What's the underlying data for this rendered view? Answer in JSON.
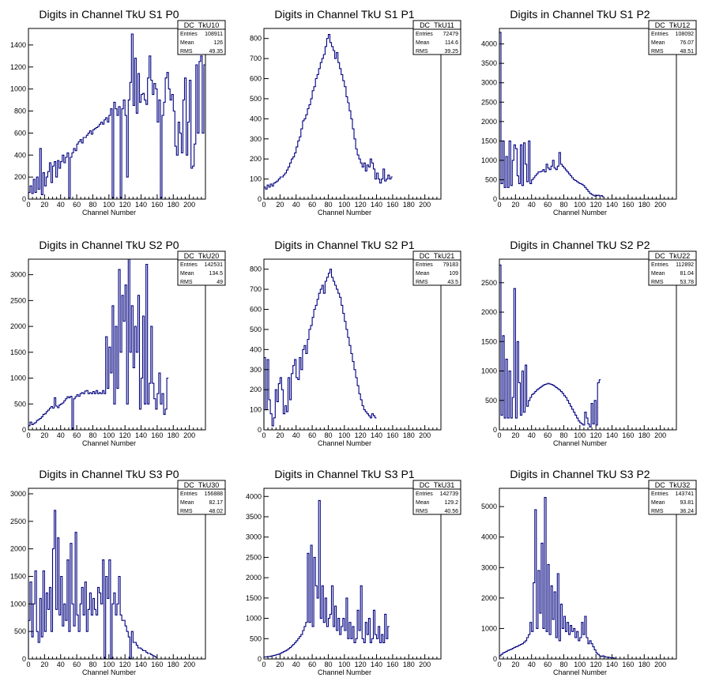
{
  "line_color": "#000080",
  "chart_data": [
    {
      "type": "histogram",
      "title": "Digits in Channel TkU S1 P0",
      "xlabel": "Channel Number",
      "ylabel": "",
      "xlim": [
        0,
        220
      ],
      "ylim": [
        0,
        1550
      ],
      "xticks": [
        0,
        20,
        40,
        60,
        80,
        100,
        120,
        140,
        160,
        180,
        200
      ],
      "yticks": [
        200,
        400,
        600,
        800,
        1000,
        1200,
        1400
      ],
      "stats": {
        "name": "DC_TkU10",
        "entries": "108911",
        "mean": "126",
        "rms": "49.35"
      },
      "bin_width": 2,
      "x_start": 0,
      "values": [
        60,
        120,
        50,
        180,
        60,
        200,
        90,
        460,
        40,
        240,
        120,
        200,
        250,
        330,
        150,
        300,
        340,
        200,
        350,
        280,
        340,
        400,
        330,
        380,
        420,
        10,
        380,
        420,
        460,
        440,
        500,
        520,
        540,
        510,
        560,
        560,
        580,
        600,
        620,
        590,
        630,
        640,
        650,
        660,
        680,
        700,
        680,
        720,
        740,
        700,
        760,
        820,
        10,
        880,
        820,
        760,
        840,
        10,
        820,
        900,
        760,
        200,
        900,
        1060,
        1500,
        850,
        1280,
        780,
        1140,
        880,
        950,
        960,
        900,
        860,
        1100,
        1300,
        1080,
        950,
        1050,
        1000,
        700,
        900,
        10,
        760,
        880,
        1100,
        1150,
        1000,
        900,
        950,
        800,
        480,
        400,
        700,
        600,
        420,
        900,
        1100,
        400,
        700,
        1080,
        280,
        300,
        500,
        1220,
        600,
        1250,
        1300,
        600,
        1220
      ]
    },
    {
      "type": "histogram",
      "title": "Digits in Channel TkU S1 P1",
      "xlabel": "Channel Number",
      "ylabel": "",
      "xlim": [
        0,
        220
      ],
      "ylim": [
        0,
        850
      ],
      "xticks": [
        0,
        20,
        40,
        60,
        80,
        100,
        120,
        140,
        160,
        180,
        200
      ],
      "yticks": [
        100,
        200,
        300,
        400,
        500,
        600,
        700,
        800
      ],
      "stats": {
        "name": "DC_TkU11",
        "entries": "72479",
        "mean": "114.6",
        "rms": "39.25"
      },
      "bin_width": 2,
      "x_start": 0,
      "values": [
        60,
        50,
        70,
        60,
        75,
        65,
        80,
        85,
        90,
        100,
        110,
        110,
        120,
        130,
        145,
        160,
        180,
        200,
        210,
        230,
        260,
        290,
        310,
        350,
        390,
        400,
        420,
        450,
        470,
        500,
        540,
        560,
        600,
        620,
        650,
        680,
        700,
        720,
        760,
        800,
        820,
        780,
        760,
        740,
        700,
        730,
        680,
        650,
        620,
        590,
        560,
        510,
        480,
        440,
        400,
        350,
        300,
        250,
        220,
        200,
        180,
        160,
        180,
        140,
        170,
        160,
        200,
        180,
        150,
        100,
        130,
        100,
        80,
        100,
        150,
        90,
        100,
        120,
        100,
        110
      ]
    },
    {
      "type": "histogram",
      "title": "Digits in Channel TkU S1 P2",
      "xlabel": "Channel Number",
      "ylabel": "",
      "xlim": [
        0,
        220
      ],
      "ylim": [
        0,
        4400
      ],
      "xticks": [
        0,
        20,
        40,
        60,
        80,
        100,
        120,
        140,
        160,
        180,
        200
      ],
      "yticks": [
        500,
        1000,
        1500,
        2000,
        2500,
        3000,
        3500,
        4000
      ],
      "stats": {
        "name": "DC_TkU12",
        "entries": "108092",
        "mean": "76.07",
        "rms": "48.51"
      },
      "bin_width": 2,
      "x_start": 0,
      "values": [
        4300,
        400,
        1500,
        300,
        1100,
        300,
        1500,
        350,
        1000,
        1400,
        1300,
        600,
        400,
        1400,
        350,
        1450,
        900,
        450,
        1500,
        400,
        500,
        550,
        600,
        650,
        700,
        700,
        720,
        760,
        700,
        900,
        800,
        760,
        850,
        1000,
        800,
        760,
        850,
        1200,
        900,
        850,
        800,
        750,
        700,
        650,
        600,
        550,
        500,
        480,
        450,
        420,
        400,
        380,
        350,
        300,
        250,
        200,
        150,
        120,
        100,
        80,
        90,
        100,
        80,
        90,
        60
      ]
    },
    {
      "type": "histogram",
      "title": "Digits in Channel TkU S2 P0",
      "xlabel": "Channel Number",
      "ylabel": "",
      "xlim": [
        0,
        220
      ],
      "ylim": [
        0,
        3300
      ],
      "xticks": [
        0,
        20,
        40,
        60,
        80,
        100,
        120,
        140,
        160,
        180,
        200
      ],
      "yticks": [
        500,
        1000,
        1500,
        2000,
        2500,
        3000
      ],
      "stats": {
        "name": "DC_TkU20",
        "entries": "142531",
        "mean": "134.5",
        "rms": "49"
      },
      "bin_width": 2,
      "x_start": 0,
      "values": [
        80,
        150,
        100,
        120,
        140,
        180,
        200,
        220,
        250,
        300,
        310,
        350,
        380,
        420,
        450,
        420,
        620,
        460,
        430,
        480,
        500,
        520,
        560,
        600,
        640,
        620,
        650,
        10,
        600,
        640,
        680,
        650,
        700,
        720,
        700,
        750,
        760,
        700,
        720,
        700,
        740,
        700,
        760,
        700,
        720,
        700,
        760,
        700,
        1800,
        800,
        1600,
        1100,
        2400,
        500,
        2000,
        800,
        3100,
        1500,
        2600,
        2100,
        2800,
        500,
        3300,
        1500,
        2400,
        1200,
        2000,
        1500,
        2600,
        400,
        1000,
        2200,
        500,
        3200,
        500,
        900,
        2000,
        900,
        600,
        400,
        700,
        1100,
        500,
        700,
        300,
        400,
        1000
      ]
    },
    {
      "type": "histogram",
      "title": "Digits in Channel TkU S2 P1",
      "xlabel": "Channel Number",
      "ylabel": "",
      "xlim": [
        0,
        220
      ],
      "ylim": [
        0,
        850
      ],
      "xticks": [
        0,
        20,
        40,
        60,
        80,
        100,
        120,
        140,
        160,
        180,
        200
      ],
      "yticks": [
        100,
        200,
        300,
        400,
        500,
        600,
        700,
        800
      ],
      "stats": {
        "name": "DC_TkU21",
        "entries": "79183",
        "mean": "109",
        "rms": "43.5"
      },
      "bin_width": 2,
      "x_start": 0,
      "values": [
        360,
        100,
        350,
        150,
        80,
        20,
        60,
        200,
        140,
        230,
        260,
        200,
        80,
        120,
        90,
        260,
        150,
        280,
        320,
        350,
        260,
        250,
        360,
        300,
        400,
        420,
        380,
        450,
        500,
        520,
        560,
        600,
        620,
        650,
        680,
        700,
        720,
        680,
        740,
        760,
        780,
        800,
        760,
        740,
        720,
        700,
        680,
        660,
        620,
        580,
        540,
        500,
        460,
        420,
        380,
        340,
        300,
        260,
        220,
        180,
        150,
        120,
        100,
        90,
        80,
        70,
        60,
        80,
        70,
        60
      ]
    },
    {
      "type": "histogram",
      "title": "Digits in Channel TkU S2 P2",
      "xlabel": "Channel Number",
      "ylabel": "",
      "xlim": [
        0,
        220
      ],
      "ylim": [
        0,
        2900
      ],
      "xticks": [
        0,
        20,
        40,
        60,
        80,
        100,
        120,
        140,
        160,
        180,
        200
      ],
      "yticks": [
        500,
        1000,
        1500,
        2000,
        2500
      ],
      "stats": {
        "name": "DC_TkU22",
        "entries": "112892",
        "mean": "81.04",
        "rms": "53.78"
      },
      "bin_width": 2,
      "x_start": 0,
      "values": [
        2800,
        250,
        1600,
        200,
        1200,
        200,
        1000,
        200,
        550,
        2400,
        200,
        1500,
        800,
        250,
        1000,
        300,
        1100,
        400,
        500,
        550,
        600,
        620,
        650,
        680,
        700,
        720,
        740,
        760,
        770,
        780,
        790,
        780,
        770,
        760,
        740,
        720,
        700,
        680,
        650,
        620,
        580,
        550,
        500,
        450,
        400,
        350,
        300,
        250,
        200,
        150,
        120,
        100,
        80,
        300,
        200,
        100,
        50,
        450,
        100,
        500,
        80,
        800,
        850
      ]
    },
    {
      "type": "histogram",
      "title": "Digits in Channel TkU S3 P0",
      "xlabel": "Channel Number",
      "ylabel": "",
      "xlim": [
        0,
        220
      ],
      "ylim": [
        0,
        3100
      ],
      "xticks": [
        0,
        20,
        40,
        60,
        80,
        100,
        120,
        140,
        160,
        180,
        200
      ],
      "yticks": [
        500,
        1000,
        1500,
        2000,
        2500,
        3000
      ],
      "stats": {
        "name": "DC_TkU30",
        "entries": "156888",
        "mean": "82.17",
        "rms": "48.02"
      },
      "bin_width": 2,
      "x_start": 0,
      "values": [
        700,
        1400,
        400,
        1000,
        1600,
        500,
        300,
        1100,
        400,
        1600,
        500,
        1200,
        900,
        1300,
        500,
        2000,
        2700,
        900,
        2200,
        800,
        1500,
        600,
        1000,
        700,
        1800,
        500,
        2100,
        1000,
        600,
        2300,
        800,
        500,
        1000,
        1300,
        800,
        1400,
        500,
        900,
        1200,
        800,
        1100,
        900,
        800,
        1300,
        1200,
        1000,
        1800,
        10,
        1500,
        1100,
        1800,
        10,
        1000,
        1200,
        800,
        1000,
        1500,
        800,
        700,
        700,
        600,
        500,
        400,
        10,
        500,
        300,
        300,
        250,
        200,
        200,
        180,
        150,
        150,
        120,
        100,
        100,
        80,
        60,
        50,
        30
      ]
    },
    {
      "type": "histogram",
      "title": "Digits in Channel TkU S3 P1",
      "xlabel": "Channel Number",
      "ylabel": "",
      "xlim": [
        0,
        220
      ],
      "ylim": [
        0,
        4200
      ],
      "xticks": [
        0,
        20,
        40,
        60,
        80,
        100,
        120,
        140,
        160,
        180,
        200
      ],
      "yticks": [
        500,
        1000,
        1500,
        2000,
        2500,
        3000,
        3500,
        4000
      ],
      "stats": {
        "name": "DC_TkU31",
        "entries": "142739",
        "mean": "129.2",
        "rms": "40.56"
      },
      "bin_width": 2,
      "x_start": 0,
      "values": [
        50,
        50,
        60,
        60,
        70,
        80,
        90,
        100,
        110,
        120,
        140,
        160,
        180,
        200,
        220,
        250,
        280,
        320,
        360,
        400,
        450,
        500,
        550,
        600,
        700,
        800,
        900,
        2600,
        900,
        2800,
        800,
        2500,
        1800,
        1500,
        3900,
        1000,
        1800,
        900,
        1500,
        800,
        1000,
        1100,
        1800,
        800,
        1300,
        700,
        1000,
        600,
        800,
        1000,
        700,
        1500,
        500,
        900,
        500,
        800,
        400,
        500,
        1200,
        700,
        1800,
        500,
        400,
        900,
        600,
        1000,
        400,
        500,
        1200,
        600,
        500,
        800,
        400,
        600,
        400,
        1100,
        500,
        800
      ]
    },
    {
      "type": "histogram",
      "title": "Digits in Channel TkU S3 P2",
      "xlabel": "Channel Number",
      "ylabel": "",
      "xlim": [
        0,
        220
      ],
      "ylim": [
        0,
        5600
      ],
      "xticks": [
        0,
        20,
        40,
        60,
        80,
        100,
        120,
        140,
        160,
        180,
        200
      ],
      "yticks": [
        1000,
        2000,
        3000,
        4000,
        5000
      ],
      "stats": {
        "name": "DC_TkU32",
        "entries": "143741",
        "mean": "93.81",
        "rms": "36.24"
      },
      "bin_width": 2,
      "x_start": 0,
      "values": [
        100,
        150,
        200,
        220,
        250,
        280,
        300,
        320,
        350,
        380,
        400,
        420,
        450,
        480,
        500,
        550,
        600,
        700,
        800,
        1200,
        900,
        2500,
        4900,
        1000,
        2900,
        1500,
        3800,
        1000,
        5300,
        900,
        3100,
        800,
        2400,
        1300,
        2200,
        700,
        2800,
        600,
        1800,
        1000,
        1400,
        900,
        1200,
        800,
        1100,
        900,
        1000,
        700,
        900,
        600,
        700,
        1200,
        800,
        1400,
        700,
        500,
        600,
        500,
        400,
        300,
        200,
        150,
        100,
        80,
        100,
        80,
        60,
        60,
        50,
        40,
        40,
        30
      ]
    }
  ]
}
